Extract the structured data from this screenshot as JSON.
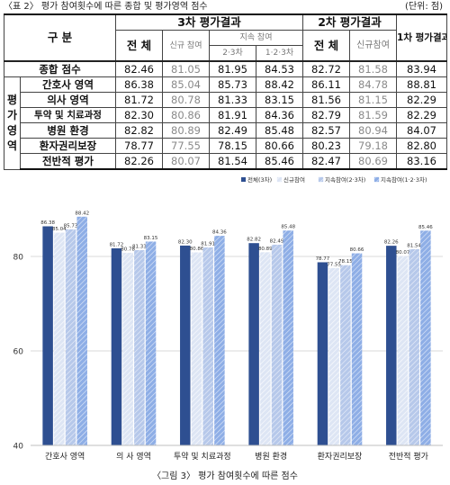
{
  "table": {
    "caption": "〈표 2〉 평가 참여횟수에 따른 종합 및 평가영역 점수",
    "unit": "(단위: 점)",
    "header": {
      "gubun": "구 분",
      "third": "3차 평가결과",
      "second": "2차 평가결과",
      "first": "1차 평가결과",
      "total": "전 체",
      "new": "신규 참여",
      "continued": "지속 참여",
      "c23": "2·3차",
      "c123": "1·2·3차",
      "total2": "전 체",
      "new2": "신규참여"
    },
    "area_label": [
      "평",
      "가",
      "영",
      "역"
    ],
    "rows": [
      {
        "label": "종합 점수",
        "v": [
          "82.46",
          "81.05",
          "81.95",
          "84.53",
          "82.72",
          "81.58",
          "83.94"
        ]
      },
      {
        "label": "간호사 영역",
        "v": [
          "86.38",
          "85.04",
          "85.73",
          "88.42",
          "86.11",
          "84.78",
          "88.81"
        ]
      },
      {
        "label": "의사 영역",
        "v": [
          "81.72",
          "80.78",
          "81.33",
          "83.15",
          "81.56",
          "81.15",
          "82.29"
        ]
      },
      {
        "label": "투약 및 치료과정",
        "v": [
          "82.30",
          "80.86",
          "81.91",
          "84.36",
          "82.79",
          "81.59",
          "82.29"
        ]
      },
      {
        "label": "병원 환경",
        "v": [
          "82.82",
          "80.89",
          "82.49",
          "85.48",
          "82.57",
          "80.94",
          "84.07"
        ]
      },
      {
        "label": "환자권리보장",
        "v": [
          "78.77",
          "77.55",
          "78.15",
          "80.66",
          "80.23",
          "79.18",
          "82.80"
        ]
      },
      {
        "label": "전반적 평가",
        "v": [
          "82.26",
          "80.07",
          "81.54",
          "85.46",
          "82.47",
          "80.69",
          "83.16"
        ]
      }
    ]
  },
  "chart_data": {
    "type": "bar",
    "categories": [
      "간호사 영역",
      "의 사 영역",
      "투약 및 치료과정",
      "병원 환경",
      "환자권리보장",
      "전반적 평가"
    ],
    "series": [
      {
        "name": "전체(3차)",
        "values": [
          86.38,
          81.72,
          82.3,
          82.82,
          78.77,
          82.26
        ],
        "color": "#2e4f91"
      },
      {
        "name": "신규참여",
        "values": [
          85.04,
          80.78,
          80.86,
          80.89,
          77.55,
          80.07
        ],
        "color": "#dde5f4"
      },
      {
        "name": "지속참여(2·3차)",
        "values": [
          85.73,
          81.33,
          81.91,
          82.49,
          78.15,
          81.54
        ],
        "color": "#b6c8ea"
      },
      {
        "name": "지속참여(1·2·3차)",
        "values": [
          88.42,
          83.15,
          84.36,
          85.48,
          80.66,
          85.46
        ],
        "color": "#8eaee6"
      }
    ],
    "y_ticks": [
      "40",
      "60",
      "80"
    ],
    "ylim": [
      40,
      92
    ],
    "grid": true,
    "legend_position": "top-right",
    "title": "",
    "xlabel": "",
    "ylabel": ""
  },
  "figure_caption": "〈그림 3〉 평가 참여횟수에 따른 점수"
}
